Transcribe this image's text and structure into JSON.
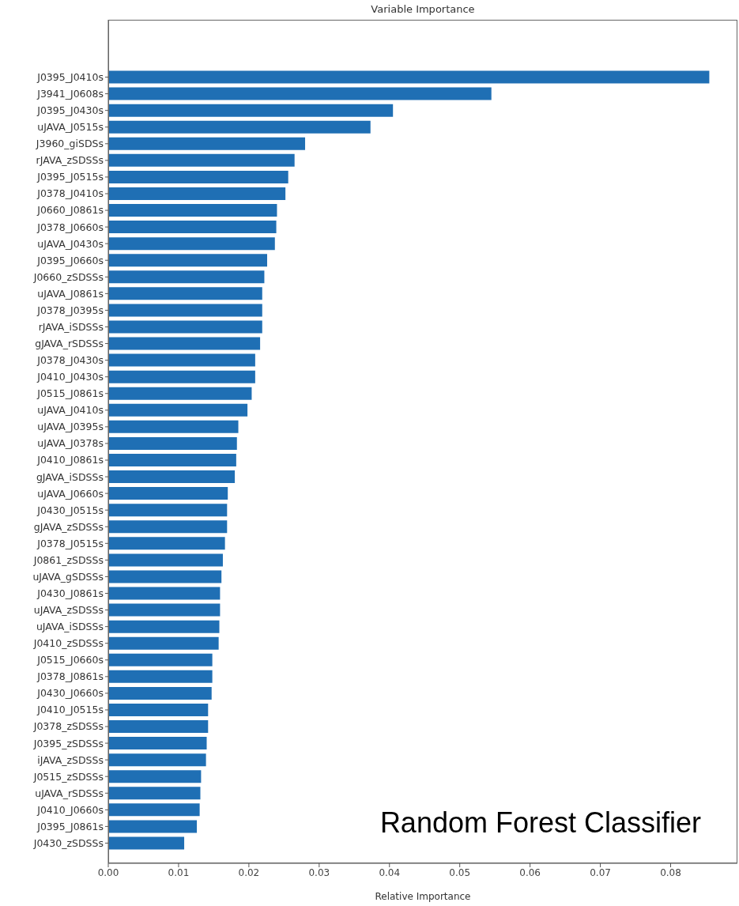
{
  "chart_data": {
    "type": "bar",
    "orientation": "horizontal",
    "title": "Variable Importance",
    "xlabel": "Relative Importance",
    "categories": [
      "J0395_J0410s",
      "J3941_J0608s",
      "J0395_J0430s",
      "uJAVA_J0515s",
      "J3960_giSDSs",
      "rJAVA_zSDSSs",
      "J0395_J0515s",
      "J0378_J0410s",
      "J0660_J0861s",
      "J0378_J0660s",
      "uJAVA_J0430s",
      "J0395_J0660s",
      "J0660_zSDSSs",
      "uJAVA_J0861s",
      "J0378_J0395s",
      "rJAVA_iSDSSs",
      "gJAVA_rSDSSs",
      "J0378_J0430s",
      "J0410_J0430s",
      "J0515_J0861s",
      "uJAVA_J0410s",
      "uJAVA_J0395s",
      "uJAVA_J0378s",
      "J0410_J0861s",
      "gJAVA_iSDSSs",
      "uJAVA_J0660s",
      "J0430_J0515s",
      "gJAVA_zSDSSs",
      "J0378_J0515s",
      "J0861_zSDSSs",
      "uJAVA_gSDSSs",
      "J0430_J0861s",
      "uJAVA_zSDSSs",
      "uJAVA_iSDSSs",
      "J0410_zSDSSs",
      "J0515_J0660s",
      "J0378_J0861s",
      "J0430_J0660s",
      "J0410_J0515s",
      "J0378_zSDSSs",
      "J0395_zSDSSs",
      "iJAVA_zSDSSs",
      "J0515_zSDSSs",
      "uJAVA_rSDSSs",
      "J0410_J0660s",
      "J0395_J0861s",
      "J0430_zSDSSs"
    ],
    "values": [
      0.0855,
      0.0545,
      0.0405,
      0.0373,
      0.028,
      0.0265,
      0.0256,
      0.0252,
      0.024,
      0.0239,
      0.0237,
      0.0226,
      0.0222,
      0.0219,
      0.0219,
      0.0219,
      0.0216,
      0.0209,
      0.0209,
      0.0204,
      0.0198,
      0.0185,
      0.0183,
      0.0182,
      0.018,
      0.017,
      0.0169,
      0.0169,
      0.0166,
      0.0163,
      0.0161,
      0.0159,
      0.0159,
      0.0158,
      0.0157,
      0.0148,
      0.0148,
      0.0147,
      0.0142,
      0.0142,
      0.014,
      0.0139,
      0.0132,
      0.0131,
      0.013,
      0.0126,
      0.0108
    ],
    "color": "#1f6fb4",
    "xlim": [
      0,
      0.0895
    ],
    "xticks": [
      {
        "value": 0,
        "label": "0.00"
      },
      {
        "value": 0.01,
        "label": "0.01"
      },
      {
        "value": 0.02,
        "label": "0.02"
      },
      {
        "value": 0.03,
        "label": "0.03"
      },
      {
        "value": 0.04,
        "label": "0.04"
      },
      {
        "value": 0.05,
        "label": "0.05"
      },
      {
        "value": 0.06,
        "label": "0.06"
      },
      {
        "value": 0.07,
        "label": "0.07"
      },
      {
        "value": 0.08,
        "label": "0.08"
      }
    ],
    "annotations": [
      "Random Forest Classifier"
    ]
  }
}
